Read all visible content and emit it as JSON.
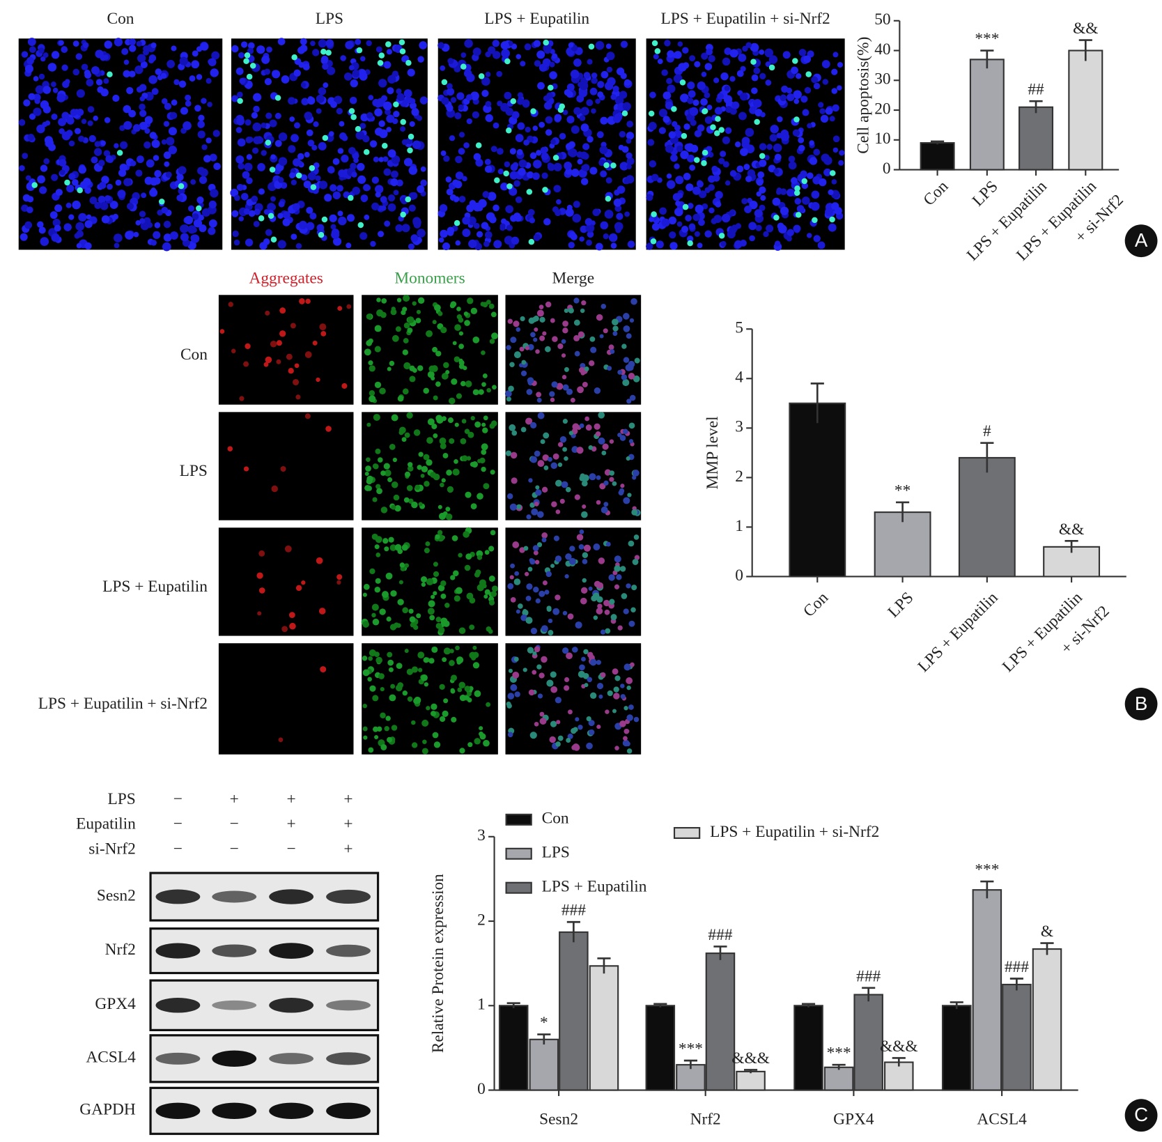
{
  "panel_labels": [
    "A",
    "B",
    "C"
  ],
  "panel_a_images": {
    "titles": [
      "Con",
      "LPS",
      "LPS + Eupatilin",
      "LPS + Eupatilin + si-Nrf2"
    ]
  },
  "panel_b_images": {
    "columns": [
      "Aggregates",
      "Monomers",
      "Merge"
    ],
    "rows": [
      "Con",
      "LPS",
      "LPS + Eupatilin",
      "LPS + Eupatilin + si-Nrf2"
    ]
  },
  "western_blot": {
    "treatments": [
      {
        "name": "LPS",
        "signs": [
          "−",
          "+",
          "+",
          "+"
        ]
      },
      {
        "name": "Eupatilin",
        "signs": [
          "−",
          "−",
          "+",
          "+"
        ]
      },
      {
        "name": "si-Nrf2",
        "signs": [
          "−",
          "−",
          "−",
          "+"
        ]
      }
    ],
    "proteins": [
      "Sesn2",
      "Nrf2",
      "GPX4",
      "ACSL4",
      "GAPDH"
    ]
  },
  "chart_data": [
    {
      "type": "bar",
      "y_label": "Cell apoptosis(%)",
      "categories": [
        [
          "Con"
        ],
        [
          "LPS"
        ],
        [
          "LPS + Eupatilin"
        ],
        [
          "LPS + Eupatilin",
          "+ si-Nrf2"
        ]
      ],
      "values": [
        9,
        37,
        21,
        40
      ],
      "errors": [
        0.5,
        3,
        2,
        3.5
      ],
      "annotations": [
        null,
        "***",
        "##",
        "&&"
      ],
      "colors": [
        "#0d0d0d",
        "#a6a7ac",
        "#6f7074",
        "#d8d8d8"
      ],
      "ylim": [
        0,
        50
      ],
      "yticks": [
        0,
        10,
        20,
        30,
        40,
        50
      ]
    },
    {
      "type": "bar",
      "y_label": "MMP level",
      "categories": [
        [
          "Con"
        ],
        [
          "LPS"
        ],
        [
          "LPS + Eupatilin"
        ],
        [
          "LPS + Eupatilin",
          "+ si-Nrf2"
        ]
      ],
      "values": [
        3.5,
        1.3,
        2.4,
        0.6
      ],
      "errors": [
        0.4,
        0.2,
        0.3,
        0.12
      ],
      "annotations": [
        null,
        "**",
        "#",
        "&&"
      ],
      "colors": [
        "#0d0d0d",
        "#a6a7ac",
        "#6f7074",
        "#d8d8d8"
      ],
      "ylim": [
        0,
        5
      ],
      "yticks": [
        0,
        1,
        2,
        3,
        4,
        5
      ]
    },
    {
      "type": "grouped_bar",
      "y_label": "Relative Protein expression",
      "categories": [
        "Sesn2",
        "Nrf2",
        "GPX4",
        "ACSL4"
      ],
      "series": [
        {
          "name": "Con",
          "color": "#0d0d0d",
          "values": [
            1,
            1,
            1,
            1
          ],
          "errors": [
            0.03,
            0.02,
            0.02,
            0.04
          ],
          "annotations": [
            null,
            null,
            null,
            null
          ]
        },
        {
          "name": "LPS",
          "color": "#a6a7ac",
          "values": [
            0.6,
            0.3,
            0.27,
            2.37
          ],
          "errors": [
            0.06,
            0.05,
            0.03,
            0.1
          ],
          "annotations": [
            "*",
            "***",
            "***",
            "***"
          ]
        },
        {
          "name": "LPS + Eupatilin",
          "color": "#6f7074",
          "values": [
            1.87,
            1.62,
            1.13,
            1.25
          ],
          "errors": [
            0.12,
            0.08,
            0.08,
            0.07
          ],
          "annotations": [
            "###",
            "###",
            "###",
            "###"
          ]
        },
        {
          "name": "LPS + Eupatilin + si-Nrf2",
          "color": "#d8d8d8",
          "values": [
            1.47,
            0.22,
            0.33,
            1.67
          ],
          "errors": [
            0.09,
            0.02,
            0.05,
            0.07
          ],
          "annotations": [
            null,
            "&&&",
            "&&&",
            "&"
          ]
        }
      ],
      "ylim": [
        0,
        3
      ],
      "yticks": [
        0,
        1,
        2,
        3
      ]
    }
  ]
}
